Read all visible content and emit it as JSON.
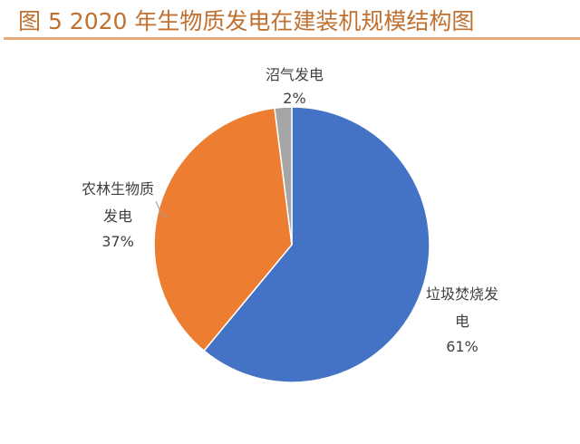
{
  "title": "图 5 2020 年生物质发电在建装机规模结构图",
  "chart_data": {
    "type": "pie",
    "title": "图 5 2020 年生物质发电在建装机规模结构图",
    "slices": [
      {
        "label": "垃圾焚烧发电",
        "value": 61,
        "display": "61%",
        "color": "#4472c4"
      },
      {
        "label": "农林生物质发电",
        "value": 37,
        "display": "37%",
        "color": "#ed7d31"
      },
      {
        "label": "沼气发电",
        "value": 2,
        "display": "2%",
        "color": "#a5a5a5"
      }
    ],
    "start": "12 o'clock",
    "direction": "clockwise"
  }
}
